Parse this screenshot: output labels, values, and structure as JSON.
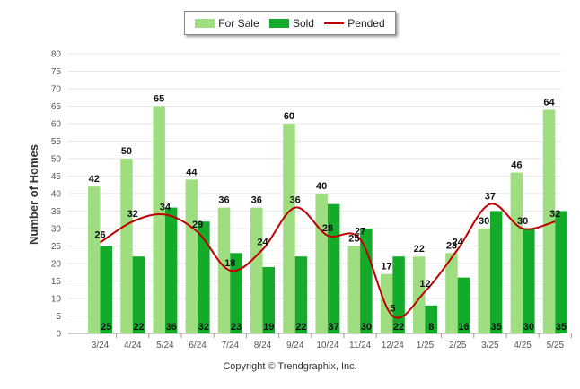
{
  "credit": "Copyright © Trendgraphix, Inc.",
  "chart_data": {
    "type": "bar",
    "categories": [
      "3/24",
      "4/24",
      "5/24",
      "6/24",
      "7/24",
      "8/24",
      "9/24",
      "10/24",
      "11/24",
      "12/24",
      "1/25",
      "2/25",
      "3/25",
      "4/25",
      "5/25"
    ],
    "series": [
      {
        "name": "For Sale",
        "kind": "bar",
        "color": "#9ede80",
        "values": [
          42,
          50,
          65,
          44,
          36,
          36,
          60,
          40,
          25,
          17,
          22,
          23,
          30,
          46,
          64
        ]
      },
      {
        "name": "Sold",
        "kind": "bar",
        "color": "#14aa2a",
        "values": [
          25,
          22,
          36,
          32,
          23,
          19,
          22,
          37,
          30,
          22,
          8,
          16,
          35,
          30,
          35
        ]
      },
      {
        "name": "Pended",
        "kind": "line",
        "color": "#c00000",
        "values": [
          26,
          32,
          34,
          29,
          18,
          24,
          36,
          28,
          27,
          5,
          12,
          24,
          37,
          30,
          32
        ]
      }
    ],
    "ylabel": "Number of Homes",
    "xlabel": "",
    "ylim": [
      0,
      80
    ],
    "yticks": [
      0,
      5,
      10,
      15,
      20,
      25,
      30,
      35,
      40,
      45,
      50,
      55,
      60,
      65,
      70,
      75,
      80
    ],
    "grid": true,
    "legend_position": "top-center"
  }
}
